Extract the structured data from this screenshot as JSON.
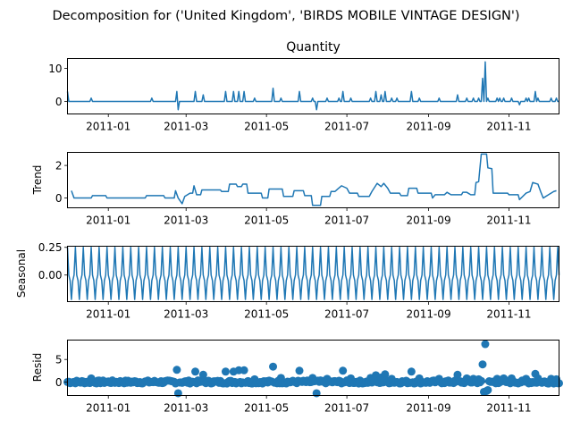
{
  "figure": {
    "suptitle": "Decomposition for ('United Kingdom', 'BIRDS MOBILE VINTAGE DESIGN')"
  },
  "colors": {
    "line": "#1f77b4",
    "axis": "#000000"
  },
  "chart_data": [
    {
      "type": "line",
      "panel": "observed",
      "title": "Quantity",
      "ylabel": "",
      "x_start": "2010-12-01",
      "x_end": "2011-12-09",
      "ylim": [
        -3.8,
        13
      ],
      "yticks": [
        0,
        10
      ],
      "xticks": [
        "2011-01",
        "2011-03",
        "2011-05",
        "2011-07",
        "2011-09",
        "2011-11"
      ],
      "baseline": 0,
      "spikes": [
        [
          "2010-12-01",
          3
        ],
        [
          "2010-12-19",
          1
        ],
        [
          "2011-02-03",
          1
        ],
        [
          "2011-02-22",
          3
        ],
        [
          "2011-02-23",
          -2.5
        ],
        [
          "2011-03-08",
          3
        ],
        [
          "2011-03-14",
          2
        ],
        [
          "2011-03-31",
          3
        ],
        [
          "2011-04-06",
          3
        ],
        [
          "2011-04-10",
          3
        ],
        [
          "2011-04-14",
          3
        ],
        [
          "2011-04-22",
          1
        ],
        [
          "2011-05-06",
          4
        ],
        [
          "2011-05-12",
          1
        ],
        [
          "2011-05-26",
          3
        ],
        [
          "2011-06-05",
          1
        ],
        [
          "2011-06-08",
          -2.5
        ],
        [
          "2011-06-16",
          1
        ],
        [
          "2011-06-25",
          1
        ],
        [
          "2011-06-28",
          3
        ],
        [
          "2011-07-04",
          1
        ],
        [
          "2011-07-19",
          1
        ],
        [
          "2011-07-23",
          3
        ],
        [
          "2011-07-27",
          2
        ],
        [
          "2011-07-30",
          3
        ],
        [
          "2011-08-04",
          1
        ],
        [
          "2011-08-08",
          1
        ],
        [
          "2011-08-19",
          3
        ],
        [
          "2011-08-25",
          1
        ],
        [
          "2011-09-09",
          1
        ],
        [
          "2011-09-23",
          2
        ],
        [
          "2011-09-30",
          1
        ],
        [
          "2011-10-05",
          1
        ],
        [
          "2011-10-09",
          1
        ],
        [
          "2011-10-12",
          7
        ],
        [
          "2011-10-14",
          12
        ],
        [
          "2011-10-16",
          1
        ],
        [
          "2011-10-23",
          1
        ],
        [
          "2011-10-25",
          1
        ],
        [
          "2011-10-28",
          1
        ],
        [
          "2011-11-03",
          1
        ],
        [
          "2011-11-09",
          -1
        ],
        [
          "2011-11-14",
          1
        ],
        [
          "2011-11-16",
          1
        ],
        [
          "2011-11-21",
          3
        ],
        [
          "2011-11-23",
          1
        ],
        [
          "2011-12-03",
          1
        ],
        [
          "2011-12-07",
          1
        ]
      ]
    },
    {
      "type": "line",
      "panel": "trend",
      "title": "",
      "ylabel": "Trend",
      "x_start": "2010-12-01",
      "x_end": "2011-12-09",
      "ylim": [
        -0.6,
        2.8
      ],
      "yticks": [
        0,
        2
      ],
      "xticks": [
        "2011-01",
        "2011-03",
        "2011-05",
        "2011-07",
        "2011-09",
        "2011-11"
      ],
      "points": [
        [
          "2010-12-04",
          0.45
        ],
        [
          "2010-12-06",
          0.0
        ],
        [
          "2010-12-19",
          0.0
        ],
        [
          "2010-12-20",
          0.15
        ],
        [
          "2010-12-30",
          0.15
        ],
        [
          "2010-12-31",
          0.0
        ],
        [
          "2011-01-29",
          0.0
        ],
        [
          "2011-01-30",
          0.15
        ],
        [
          "2011-02-12",
          0.15
        ],
        [
          "2011-02-13",
          0.0
        ],
        [
          "2011-02-20",
          0.0
        ],
        [
          "2011-02-21",
          0.45
        ],
        [
          "2011-02-23",
          0.0
        ],
        [
          "2011-02-26",
          -0.35
        ],
        [
          "2011-02-28",
          0.1
        ],
        [
          "2011-03-04",
          0.3
        ],
        [
          "2011-03-06",
          0.3
        ],
        [
          "2011-03-07",
          0.75
        ],
        [
          "2011-03-09",
          0.2
        ],
        [
          "2011-03-12",
          0.2
        ],
        [
          "2011-03-13",
          0.5
        ],
        [
          "2011-03-27",
          0.5
        ],
        [
          "2011-03-28",
          0.4
        ],
        [
          "2011-04-02",
          0.4
        ],
        [
          "2011-04-03",
          0.85
        ],
        [
          "2011-04-08",
          0.85
        ],
        [
          "2011-04-09",
          0.7
        ],
        [
          "2011-04-12",
          0.7
        ],
        [
          "2011-04-13",
          0.85
        ],
        [
          "2011-04-16",
          0.85
        ],
        [
          "2011-04-17",
          0.3
        ],
        [
          "2011-04-27",
          0.3
        ],
        [
          "2011-04-28",
          0.0
        ],
        [
          "2011-05-02",
          0.0
        ],
        [
          "2011-05-03",
          0.55
        ],
        [
          "2011-05-13",
          0.55
        ],
        [
          "2011-05-14",
          0.1
        ],
        [
          "2011-05-21",
          0.1
        ],
        [
          "2011-05-22",
          0.45
        ],
        [
          "2011-05-29",
          0.45
        ],
        [
          "2011-05-30",
          0.15
        ],
        [
          "2011-06-04",
          0.15
        ],
        [
          "2011-06-05",
          -0.45
        ],
        [
          "2011-06-11",
          -0.45
        ],
        [
          "2011-06-12",
          0.1
        ],
        [
          "2011-06-18",
          0.1
        ],
        [
          "2011-06-19",
          0.4
        ],
        [
          "2011-06-22",
          0.4
        ],
        [
          "2011-06-24",
          0.55
        ],
        [
          "2011-06-27",
          0.75
        ],
        [
          "2011-07-01",
          0.6
        ],
        [
          "2011-07-03",
          0.3
        ],
        [
          "2011-07-09",
          0.3
        ],
        [
          "2011-07-10",
          0.1
        ],
        [
          "2011-07-18",
          0.1
        ],
        [
          "2011-07-20",
          0.4
        ],
        [
          "2011-07-24",
          0.9
        ],
        [
          "2011-07-27",
          0.7
        ],
        [
          "2011-07-29",
          0.9
        ],
        [
          "2011-08-01",
          0.6
        ],
        [
          "2011-08-03",
          0.3
        ],
        [
          "2011-08-10",
          0.3
        ],
        [
          "2011-08-11",
          0.15
        ],
        [
          "2011-08-16",
          0.15
        ],
        [
          "2011-08-17",
          0.6
        ],
        [
          "2011-08-23",
          0.6
        ],
        [
          "2011-08-24",
          0.3
        ],
        [
          "2011-09-03",
          0.3
        ],
        [
          "2011-09-04",
          0.0
        ],
        [
          "2011-09-06",
          0.2
        ],
        [
          "2011-09-13",
          0.2
        ],
        [
          "2011-09-15",
          0.35
        ],
        [
          "2011-09-18",
          0.2
        ],
        [
          "2011-09-26",
          0.2
        ],
        [
          "2011-09-27",
          0.35
        ],
        [
          "2011-09-30",
          0.35
        ],
        [
          "2011-10-03",
          0.2
        ],
        [
          "2011-10-06",
          0.2
        ],
        [
          "2011-10-07",
          0.95
        ],
        [
          "2011-10-09",
          1.0
        ],
        [
          "2011-10-11",
          2.7
        ],
        [
          "2011-10-15",
          2.7
        ],
        [
          "2011-10-16",
          1.85
        ],
        [
          "2011-10-19",
          1.8
        ],
        [
          "2011-10-20",
          0.3
        ],
        [
          "2011-10-31",
          0.3
        ],
        [
          "2011-11-01",
          0.2
        ],
        [
          "2011-11-08",
          0.2
        ],
        [
          "2011-11-09",
          -0.1
        ],
        [
          "2011-11-14",
          0.3
        ],
        [
          "2011-11-17",
          0.4
        ],
        [
          "2011-11-19",
          0.95
        ],
        [
          "2011-11-23",
          0.85
        ],
        [
          "2011-11-25",
          0.4
        ],
        [
          "2011-11-27",
          0.0
        ],
        [
          "2011-12-01",
          0.2
        ],
        [
          "2011-12-05",
          0.4
        ],
        [
          "2011-12-07",
          0.45
        ]
      ]
    },
    {
      "type": "line",
      "panel": "seasonal",
      "title": "",
      "ylabel": "Seasonal",
      "x_start": "2010-12-01",
      "x_end": "2011-12-09",
      "ylim": [
        -0.24,
        0.26
      ],
      "yticks": [
        0.0,
        0.25
      ],
      "ytick_labels": [
        "0.00",
        "0.25"
      ],
      "xticks": [
        "2011-01",
        "2011-03",
        "2011-05",
        "2011-07",
        "2011-09",
        "2011-11"
      ],
      "period_days": 6,
      "pattern": [
        0.25,
        0.0,
        -0.05,
        -0.22,
        -0.05,
        0.0
      ]
    },
    {
      "type": "scatter",
      "panel": "resid",
      "title": "",
      "ylabel": "Resid",
      "x_start": "2010-12-01",
      "x_end": "2011-12-09",
      "ylim": [
        -3.0,
        9.3
      ],
      "yticks": [
        0,
        5
      ],
      "xticks": [
        "2011-01",
        "2011-03",
        "2011-05",
        "2011-07",
        "2011-09",
        "2011-11"
      ],
      "baseline": 0,
      "noise_amplitude": 0.35,
      "outliers": [
        [
          "2010-12-19",
          0.8
        ],
        [
          "2011-02-22",
          2.7
        ],
        [
          "2011-02-23",
          -2.5
        ],
        [
          "2011-03-08",
          2.3
        ],
        [
          "2011-03-14",
          1.6
        ],
        [
          "2011-03-31",
          2.3
        ],
        [
          "2011-04-06",
          2.3
        ],
        [
          "2011-04-10",
          2.6
        ],
        [
          "2011-04-14",
          2.6
        ],
        [
          "2011-04-22",
          0.6
        ],
        [
          "2011-05-06",
          3.4
        ],
        [
          "2011-05-12",
          0.9
        ],
        [
          "2011-05-26",
          2.5
        ],
        [
          "2011-06-05",
          0.9
        ],
        [
          "2011-06-08",
          -2.5
        ],
        [
          "2011-06-16",
          0.7
        ],
        [
          "2011-06-28",
          2.5
        ],
        [
          "2011-07-04",
          0.8
        ],
        [
          "2011-07-19",
          0.9
        ],
        [
          "2011-07-23",
          1.5
        ],
        [
          "2011-07-27",
          1.0
        ],
        [
          "2011-07-30",
          1.7
        ],
        [
          "2011-08-04",
          0.7
        ],
        [
          "2011-08-19",
          2.3
        ],
        [
          "2011-08-25",
          0.8
        ],
        [
          "2011-09-09",
          0.7
        ],
        [
          "2011-09-23",
          1.6
        ],
        [
          "2011-09-30",
          0.8
        ],
        [
          "2011-10-05",
          0.7
        ],
        [
          "2011-10-09",
          0.6
        ],
        [
          "2011-10-12",
          3.9
        ],
        [
          "2011-10-13",
          -2.2
        ],
        [
          "2011-10-14",
          8.4
        ],
        [
          "2011-10-15",
          -2.0
        ],
        [
          "2011-10-16",
          -1.8
        ],
        [
          "2011-10-23",
          0.7
        ],
        [
          "2011-10-28",
          0.8
        ],
        [
          "2011-11-03",
          0.8
        ],
        [
          "2011-11-14",
          0.7
        ],
        [
          "2011-11-21",
          1.8
        ],
        [
          "2011-11-23",
          0.8
        ],
        [
          "2011-12-03",
          0.7
        ],
        [
          "2011-12-07",
          0.6
        ]
      ]
    }
  ]
}
